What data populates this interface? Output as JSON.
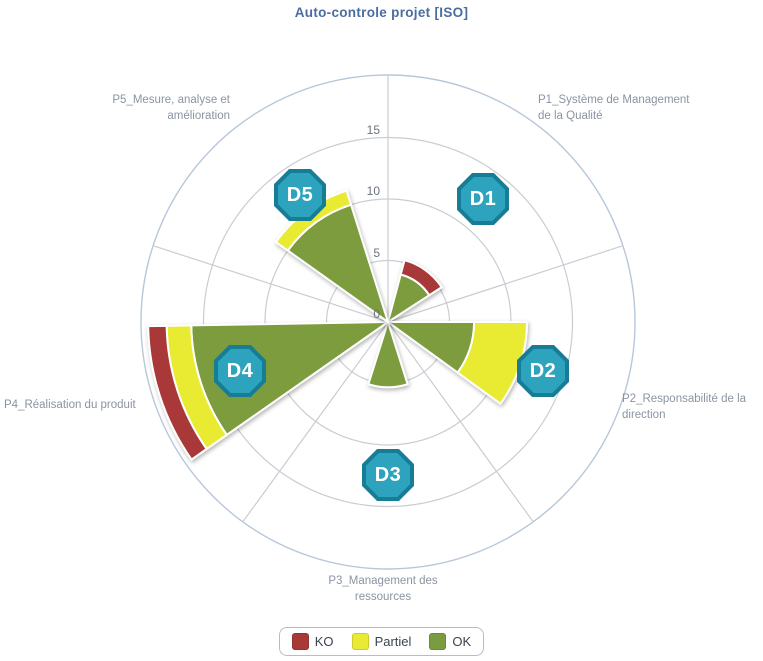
{
  "title": "Auto-controle projet [ISO]",
  "chart_data": {
    "type": "pie",
    "variant": "polar-rose radar with radially stacked status segments",
    "title": "Auto-controle projet [ISO]",
    "radial_axis": {
      "ticks": [
        0,
        5,
        10,
        15
      ],
      "max": 20,
      "outer_ring_unlabeled": true,
      "grid": "circular rings + 5 radial spokes"
    },
    "series_order": [
      "ok",
      "partiel",
      "ko"
    ],
    "sectors": [
      {
        "badge": "D1",
        "sector_label": "P1_Système de Management de la Qualité",
        "bisector_deg": 54,
        "span_deg": 42,
        "values": {
          "ok": 4,
          "partiel": 0,
          "ko": 1.2
        }
      },
      {
        "badge": "D2",
        "sector_label": "P2_Responsabilité de la direction",
        "bisector_deg": -18,
        "span_deg": 36,
        "values": {
          "ok": 7,
          "partiel": 4.3,
          "ko": 0
        }
      },
      {
        "badge": "D3",
        "sector_label": "P3_Management des ressources",
        "bisector_deg": -90,
        "span_deg": 35,
        "values": {
          "ok": 5.3,
          "partiel": 0,
          "ko": 0
        }
      },
      {
        "badge": "D4",
        "sector_label": "P4_Réalisation du produit",
        "bisector_deg": 198,
        "span_deg": 34,
        "values": {
          "ok": 16,
          "partiel": 2,
          "ko": 1.5
        }
      },
      {
        "badge": "D5",
        "sector_label": "P5_Mesure, analyse et amélioration",
        "bisector_deg": 126,
        "span_deg": 37,
        "values": {
          "ok": 10,
          "partiel": 1.2,
          "ko": 0
        }
      }
    ],
    "legend": [
      {
        "label": "KO",
        "color": "#a93937"
      },
      {
        "label": "Partiel",
        "color": "#e9ea33"
      },
      {
        "label": "OK",
        "color": "#7b9c3e"
      }
    ],
    "colors": {
      "ok": "#7b9c3e",
      "partiel": "#e9ea33",
      "ko": "#a93937",
      "badge_fill": "#2ea3be",
      "badge_border": "#177d96",
      "grid": "#c9cdd2",
      "outer_ring": "#b7c7da",
      "title_text": "#4a6da1",
      "sector_label_text": "#8a94a2",
      "tick_text": "#6a737d"
    }
  }
}
